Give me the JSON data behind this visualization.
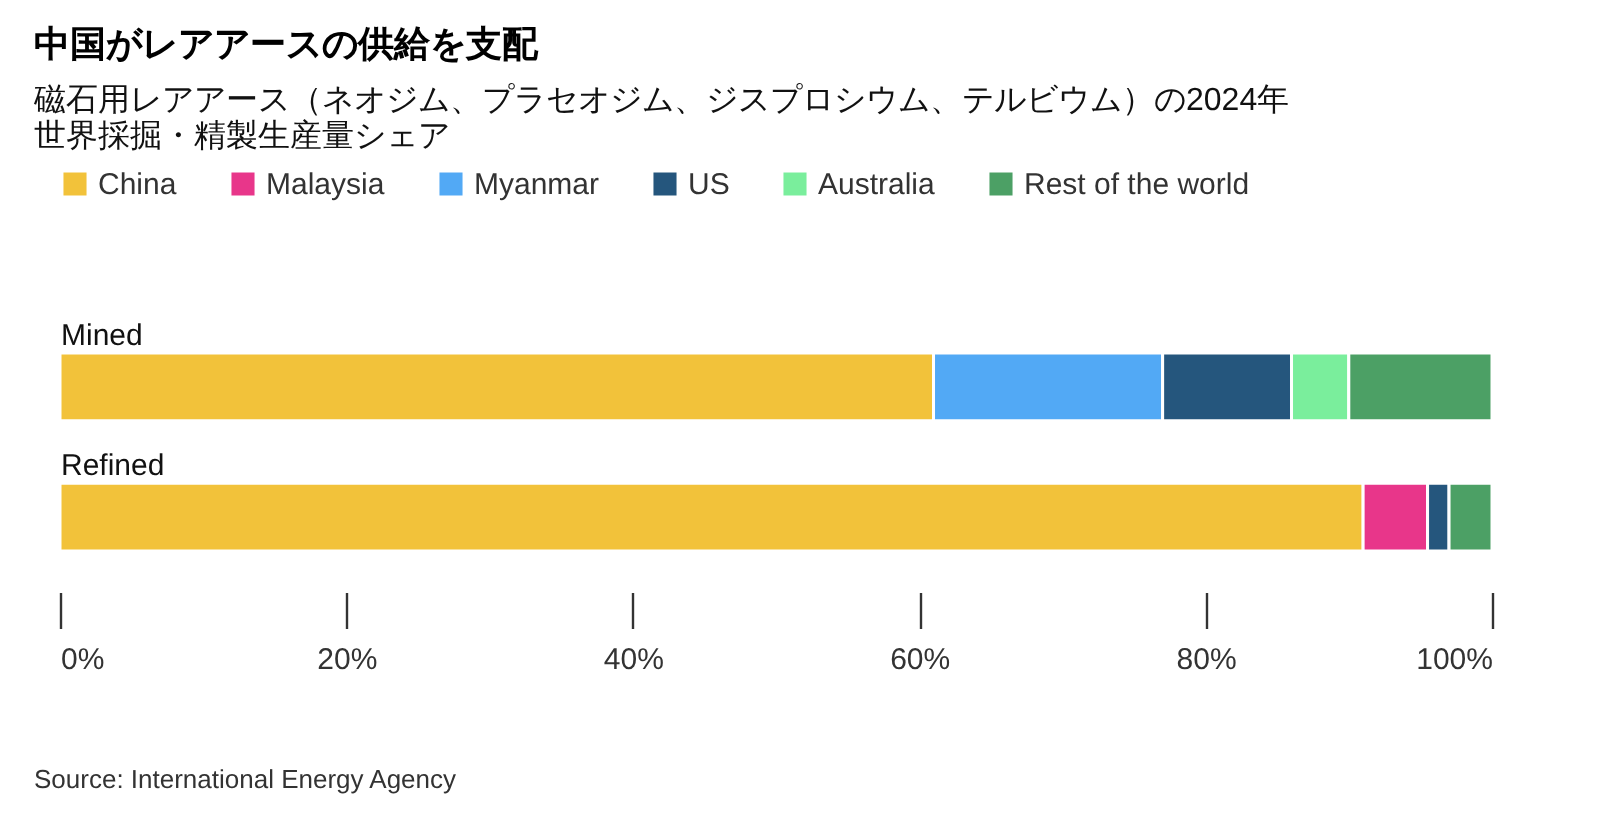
{
  "chart_data": {
    "type": "bar",
    "orientation": "horizontal",
    "stacked": true,
    "title": "中国がレアアースの供給を支配",
    "subtitle": "磁石用レアアース（ネオジム、プラセオジム、ジスプロシウム、テルビウム）の2024年世界採掘・精製生産量シェア",
    "categories": [
      "Mined",
      "Refined"
    ],
    "series": [
      {
        "name": "China",
        "color": "#f2c23a",
        "values": [
          61,
          91
        ]
      },
      {
        "name": "Malaysia",
        "color": "#e8368a",
        "values": [
          null,
          4.5
        ]
      },
      {
        "name": "Myanmar",
        "color": "#52a9f5",
        "values": [
          16,
          null
        ]
      },
      {
        "name": "US",
        "color": "#25567d",
        "values": [
          9,
          1.5
        ]
      },
      {
        "name": "Australia",
        "color": "#7aee9c",
        "values": [
          4,
          null
        ]
      },
      {
        "name": "Rest of the world",
        "color": "#4ca065",
        "values": [
          10,
          3
        ]
      }
    ],
    "xlim": [
      0,
      100
    ],
    "xticks": [
      {
        "value": 0,
        "label": "0%"
      },
      {
        "value": 20,
        "label": "20%"
      },
      {
        "value": 40,
        "label": "40%"
      },
      {
        "value": 60,
        "label": "60%"
      },
      {
        "value": 80,
        "label": "80%"
      },
      {
        "value": 100,
        "label": "100%"
      }
    ],
    "legend": "top left",
    "grid": false,
    "annotations": [
      "Source: International Energy Agency"
    ]
  }
}
